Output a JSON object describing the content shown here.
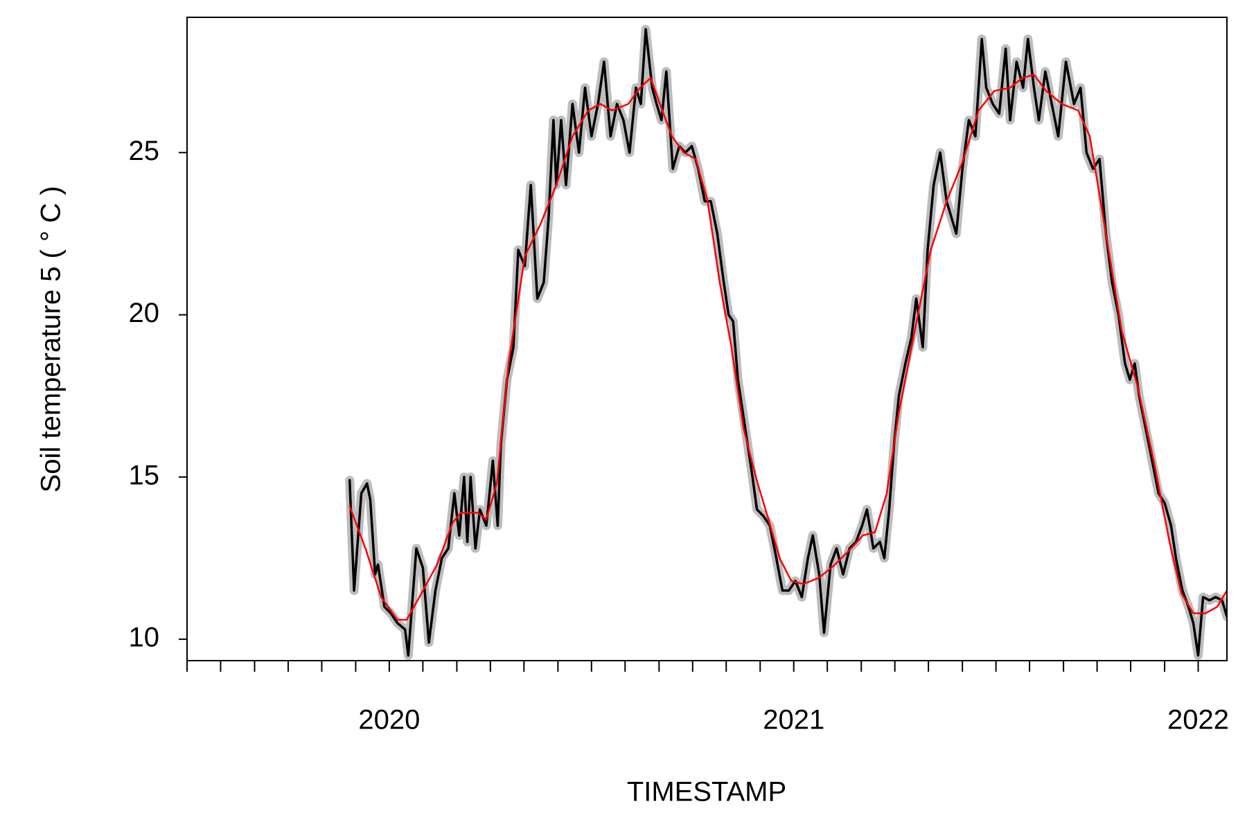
{
  "chart_data": {
    "type": "line",
    "x_label": "TIMESTAMP",
    "y_label": "Soil temperature 5 ( ° C )",
    "xlim": [
      2019.5,
      2022.071
    ],
    "xticks": [
      {
        "value": 2020,
        "label": "2020"
      },
      {
        "value": 2021,
        "label": "2021"
      },
      {
        "value": 2022,
        "label": "2022"
      }
    ],
    "xminor_ticks": [
      2019.5,
      2019.583,
      2019.667,
      2019.75,
      2019.833,
      2019.917,
      2020.083,
      2020.167,
      2020.25,
      2020.333,
      2020.417,
      2020.5,
      2020.583,
      2020.667,
      2020.75,
      2020.833,
      2020.917,
      2021.083,
      2021.167,
      2021.25,
      2021.333,
      2021.417,
      2021.5,
      2021.583,
      2021.667,
      2021.75,
      2021.833,
      2021.917
    ],
    "ylim": [
      9.34,
      29.17
    ],
    "yticks": [
      10,
      15,
      20,
      25
    ],
    "series": [
      {
        "color": "#000000",
        "halo_color": "#bdbdbd",
        "x": [
          2019.902,
          2019.913,
          2019.931,
          2019.945,
          2019.953,
          2019.965,
          2019.972,
          2019.988,
          2020.004,
          2020.02,
          2020.039,
          2020.047,
          2020.067,
          2020.083,
          2020.098,
          2020.114,
          2020.13,
          2020.146,
          2020.161,
          2020.173,
          2020.185,
          2020.193,
          2020.201,
          2020.213,
          2020.224,
          2020.24,
          2020.256,
          2020.268,
          2020.276,
          2020.291,
          2020.307,
          2020.319,
          2020.335,
          2020.35,
          2020.366,
          2020.382,
          2020.394,
          2020.406,
          2020.413,
          2020.425,
          2020.437,
          2020.453,
          2020.469,
          2020.484,
          2020.5,
          2020.516,
          2020.531,
          2020.547,
          2020.563,
          2020.579,
          2020.594,
          2020.61,
          2020.622,
          2020.634,
          2020.65,
          2020.661,
          2020.673,
          2020.685,
          2020.701,
          2020.717,
          2020.732,
          2020.748,
          2020.764,
          2020.78,
          2020.795,
          2020.811,
          2020.827,
          2020.839,
          2020.85,
          2020.862,
          2020.874,
          2020.886,
          2020.898,
          2020.909,
          2020.925,
          2020.941,
          2020.957,
          2020.972,
          2020.988,
          2021.004,
          2021.02,
          2021.035,
          2021.047,
          2021.063,
          2021.075,
          2021.091,
          2021.106,
          2021.122,
          2021.138,
          2021.154,
          2021.169,
          2021.181,
          2021.197,
          2021.213,
          2021.224,
          2021.236,
          2021.248,
          2021.26,
          2021.276,
          2021.291,
          2021.303,
          2021.319,
          2021.331,
          2021.346,
          2021.362,
          2021.378,
          2021.39,
          2021.402,
          2021.417,
          2021.433,
          2021.449,
          2021.465,
          2021.476,
          2021.492,
          2021.508,
          2021.524,
          2021.535,
          2021.551,
          2021.567,
          2021.579,
          2021.594,
          2021.606,
          2021.622,
          2021.638,
          2021.654,
          2021.673,
          2021.693,
          2021.709,
          2021.724,
          2021.74,
          2021.756,
          2021.772,
          2021.787,
          2021.803,
          2021.819,
          2021.831,
          2021.843,
          2021.854,
          2021.87,
          2021.886,
          2021.902,
          2021.917,
          2021.933,
          2021.945,
          2021.961,
          2021.976,
          2021.988,
          2022.0,
          2022.012,
          2022.028,
          2022.043,
          2022.059,
          2022.071
        ],
        "values": [
          14.9,
          11.5,
          14.5,
          14.8,
          14.3,
          12.0,
          12.3,
          11.0,
          10.8,
          10.5,
          10.3,
          9.5,
          12.8,
          12.2,
          9.9,
          11.5,
          12.5,
          12.8,
          14.5,
          13.2,
          15.0,
          13.0,
          15.0,
          12.8,
          14.0,
          13.5,
          15.5,
          13.5,
          16.0,
          18.0,
          19.0,
          22.0,
          21.5,
          24.0,
          20.5,
          21.0,
          23.0,
          26.0,
          24.0,
          26.0,
          24.0,
          26.5,
          25.0,
          27.0,
          25.5,
          26.5,
          27.8,
          25.5,
          26.5,
          26.0,
          25.0,
          27.0,
          26.5,
          28.8,
          27.0,
          26.5,
          26.0,
          27.5,
          24.5,
          25.2,
          25.0,
          25.2,
          24.5,
          23.5,
          23.5,
          22.5,
          21.0,
          20.0,
          19.8,
          18.0,
          17.0,
          16.0,
          15.0,
          14.0,
          13.8,
          13.5,
          12.5,
          11.5,
          11.5,
          11.8,
          11.3,
          12.5,
          13.2,
          12.0,
          10.2,
          12.3,
          12.8,
          12.0,
          12.8,
          13.0,
          13.5,
          14.0,
          12.8,
          13.0,
          12.5,
          14.0,
          16.0,
          17.5,
          18.5,
          19.3,
          20.5,
          19.0,
          22.0,
          24.0,
          25.0,
          23.5,
          23.0,
          22.5,
          24.5,
          26.0,
          25.5,
          28.5,
          27.0,
          26.5,
          26.2,
          28.2,
          26.0,
          27.8,
          27.0,
          28.5,
          27.0,
          26.0,
          27.5,
          26.5,
          25.5,
          27.8,
          26.5,
          27.0,
          25.0,
          24.5,
          24.8,
          22.5,
          21.0,
          20.0,
          18.5,
          18.0,
          18.5,
          17.5,
          16.5,
          15.5,
          14.5,
          14.2,
          13.5,
          12.5,
          11.5,
          11.0,
          10.5,
          9.5,
          11.3,
          11.2,
          11.3,
          11.2,
          10.7
        ]
      },
      {
        "color": "#ff0000",
        "x": [
          2019.902,
          2019.941,
          2019.98,
          2020.02,
          2020.043,
          2020.079,
          2020.118,
          2020.157,
          2020.177,
          2020.217,
          2020.24,
          2020.266,
          2020.295,
          2020.335,
          2020.374,
          2020.413,
          2020.453,
          2020.492,
          2020.522,
          2020.551,
          2020.591,
          2020.62,
          2020.646,
          2020.669,
          2020.699,
          2020.728,
          2020.758,
          2020.787,
          2020.817,
          2020.846,
          2020.876,
          2020.906,
          2020.935,
          2020.965,
          2020.994,
          2021.024,
          2021.063,
          2021.102,
          2021.142,
          2021.171,
          2021.201,
          2021.23,
          2021.26,
          2021.299,
          2021.339,
          2021.378,
          2021.417,
          2021.457,
          2021.496,
          2021.535,
          2021.565,
          2021.594,
          2021.624,
          2021.663,
          2021.703,
          2021.732,
          2021.772,
          2021.811,
          2021.85,
          2021.89,
          2021.929,
          2021.959,
          2021.988,
          2022.018,
          2022.047,
          2022.071
        ],
        "values": [
          14.1,
          12.8,
          11.3,
          10.6,
          10.6,
          11.4,
          12.3,
          13.6,
          13.9,
          13.9,
          13.7,
          14.8,
          18.5,
          21.8,
          22.8,
          24.0,
          25.5,
          26.3,
          26.5,
          26.3,
          26.5,
          27.0,
          27.3,
          26.5,
          25.5,
          25.0,
          24.8,
          23.5,
          21.0,
          19.0,
          16.5,
          15.0,
          13.8,
          12.5,
          11.8,
          11.7,
          11.9,
          12.3,
          12.8,
          13.2,
          13.3,
          14.5,
          17.0,
          19.5,
          22.0,
          23.5,
          24.7,
          26.3,
          26.9,
          27.0,
          27.3,
          27.4,
          26.9,
          26.5,
          26.3,
          25.5,
          22.5,
          19.5,
          17.8,
          15.5,
          13.0,
          11.4,
          10.8,
          10.8,
          11.0,
          11.5
        ]
      }
    ]
  }
}
